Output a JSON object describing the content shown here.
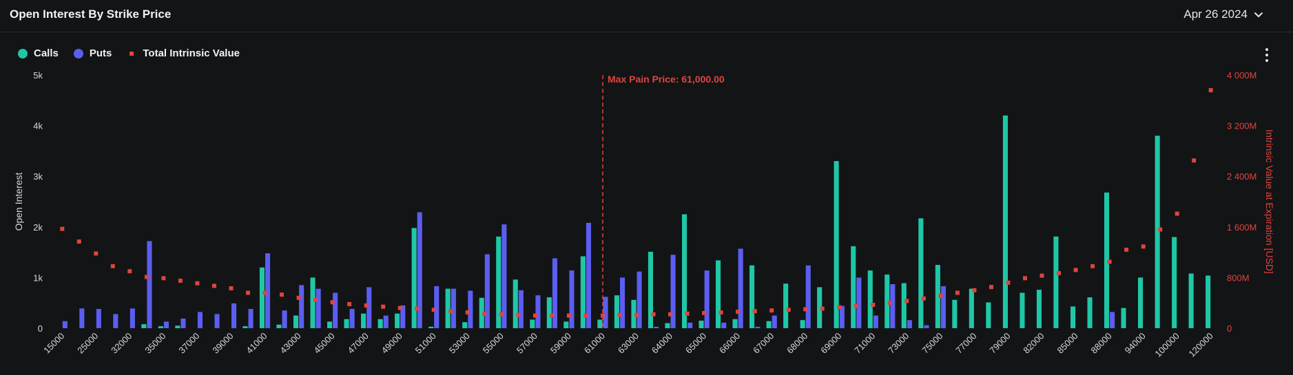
{
  "header": {
    "title": "Open Interest By Strike Price",
    "date_value": "Apr 26 2024"
  },
  "legend": {
    "calls_label": "Calls",
    "puts_label": "Puts",
    "tiv_label": "Total Intrinsic Value"
  },
  "colors": {
    "calls": "#1fc7a6",
    "puts": "#5b5ef0",
    "tiv": "#e0443e",
    "maxpain": "#e0443e"
  },
  "chart_data": {
    "type": "bar",
    "max_pain_label": "Max Pain Price: 61,000.00",
    "max_pain_index": 32,
    "ylabel": "Open Interest",
    "y2label": "Intrinsic Value at Expiration [USD]",
    "ylim": [
      0,
      5000
    ],
    "y2lim": [
      0,
      4000000000
    ],
    "yticks": [
      "0",
      "1k",
      "2k",
      "3k",
      "4k",
      "5k"
    ],
    "y2ticks": [
      "0",
      "800M",
      "1 600M",
      "2 400M",
      "3 200M",
      "4 000M"
    ],
    "xtick_labels": [
      "15000",
      "25000",
      "32000",
      "35000",
      "37000",
      "39000",
      "41000",
      "43000",
      "45000",
      "47000",
      "49000",
      "51000",
      "53000",
      "55000",
      "57000",
      "59000",
      "61000",
      "63000",
      "64000",
      "65000",
      "66000",
      "67000",
      "68000",
      "69000",
      "71000",
      "73000",
      "75000",
      "77000",
      "79000",
      "82000",
      "85000",
      "88000",
      "94000",
      "100000",
      "120000"
    ],
    "calls": [
      0,
      0,
      0,
      0,
      0,
      80,
      40,
      50,
      0,
      0,
      0,
      40,
      1200,
      70,
      250,
      1000,
      130,
      180,
      290,
      180,
      290,
      1980,
      30,
      780,
      120,
      600,
      1810,
      960,
      170,
      610,
      130,
      1420,
      170,
      650,
      560,
      1510,
      100,
      2250,
      150,
      1340,
      180,
      1240,
      140,
      880,
      160,
      810,
      3300,
      1620,
      1140,
      1060,
      890,
      2170,
      1250,
      560,
      780,
      510,
      4200,
      700,
      760,
      1810,
      430,
      610,
      2680,
      400,
      1000,
      3800,
      1800,
      1080,
      1040
    ],
    "puts": [
      140,
      390,
      380,
      280,
      390,
      1720,
      130,
      190,
      320,
      280,
      490,
      380,
      1480,
      350,
      850,
      780,
      700,
      380,
      810,
      250,
      450,
      2290,
      830,
      780,
      740,
      1460,
      2050,
      750,
      650,
      1380,
      1140,
      2080,
      620,
      1000,
      1120,
      30,
      1450,
      110,
      1140,
      110,
      1570,
      30,
      250,
      0,
      1240,
      0,
      440,
      1000,
      250,
      870,
      160,
      60,
      830,
      0,
      0,
      0,
      0,
      0,
      0,
      0,
      0,
      0,
      320,
      0,
      0,
      0,
      0,
      0,
      0
    ],
    "tiv": [
      1570,
      1370,
      1180,
      980,
      900,
      810,
      790,
      750,
      710,
      670,
      630,
      560,
      560,
      530,
      480,
      450,
      410,
      380,
      360,
      340,
      320,
      310,
      290,
      270,
      250,
      230,
      220,
      210,
      200,
      200,
      200,
      200,
      200,
      210,
      210,
      220,
      220,
      230,
      240,
      250,
      260,
      270,
      280,
      290,
      300,
      310,
      330,
      350,
      370,
      400,
      430,
      470,
      510,
      560,
      600,
      650,
      720,
      790,
      830,
      870,
      920,
      980,
      1050,
      1240,
      1290,
      1560,
      1810,
      2650,
      3760
    ]
  }
}
